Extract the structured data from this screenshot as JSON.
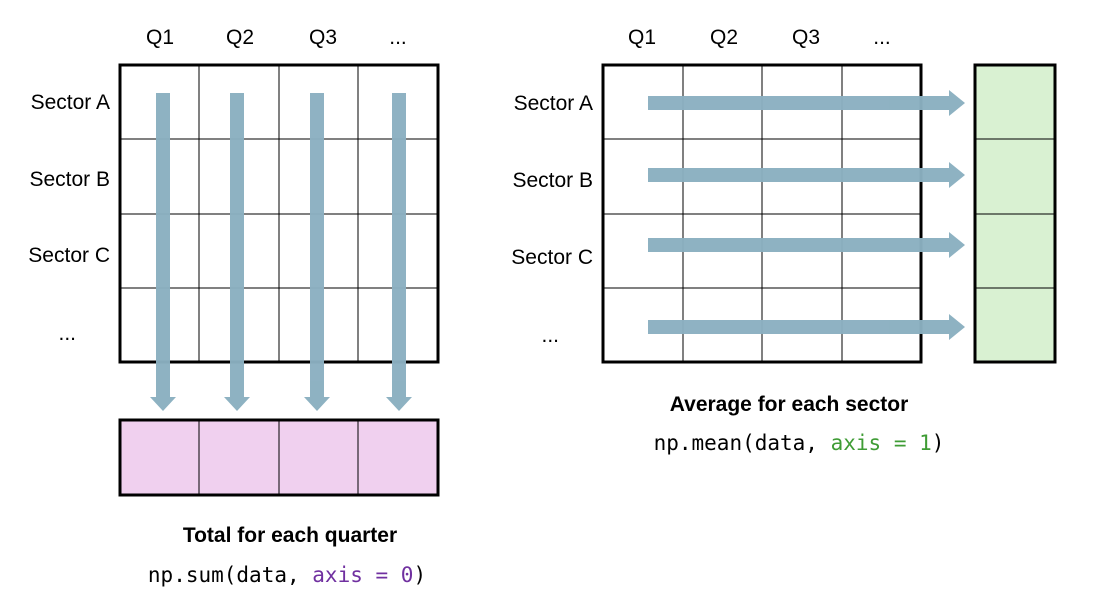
{
  "left_panel": {
    "quarters": [
      "Q1",
      "Q2",
      "Q3",
      "..."
    ],
    "sectors": [
      "Sector A",
      "Sector B",
      "Sector C",
      "..."
    ],
    "caption": "Total for each quarter",
    "code": {
      "prefix": "np.sum(data, ",
      "arg": "axis = 0",
      "suffix": ")"
    },
    "result_color": "#f0d0ef",
    "arg_color": "#7030a0"
  },
  "right_panel": {
    "quarters": [
      "Q1",
      "Q2",
      "Q3",
      "..."
    ],
    "sectors": [
      "Sector A",
      "Sector B",
      "Sector C",
      "..."
    ],
    "caption": "Average for each sector",
    "code": {
      "prefix": "np.mean(data, ",
      "arg": "axis = 1",
      "suffix": ")"
    },
    "result_color": "#d9f1d2",
    "arg_color": "#3f9c35"
  },
  "arrow_color": "#8bb0c1"
}
